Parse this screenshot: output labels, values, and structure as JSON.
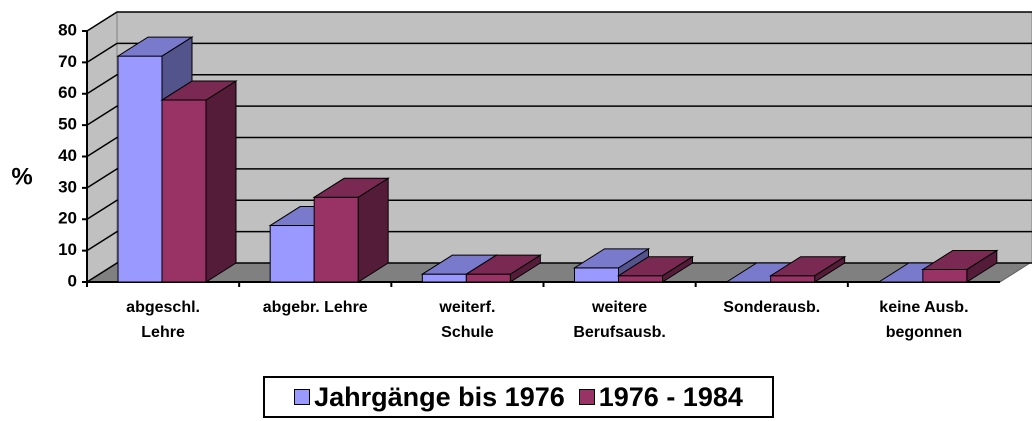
{
  "chart_data": {
    "type": "bar3d",
    "y_label": "%",
    "categories": [
      "abgeschl.\nLehre",
      "abgebr. Lehre",
      "weiterf.\nSchule",
      "weitere\nBerufsausb.",
      "Sonderausb.",
      "keine Ausb.\nbegonnen"
    ],
    "series": [
      {
        "name": "Jahrgänge bis 1976",
        "color": "#9999ff",
        "values": [
          72,
          18,
          2.5,
          4.5,
          0,
          0
        ]
      },
      {
        "name": "1976 - 1984",
        "color": "#993366",
        "values": [
          58,
          27,
          2.5,
          2,
          2,
          4
        ]
      }
    ],
    "ylim": [
      0,
      80
    ],
    "yticks": [
      0,
      10,
      20,
      30,
      40,
      50,
      60,
      70,
      80
    ],
    "grid": true,
    "legend": "bottom"
  }
}
